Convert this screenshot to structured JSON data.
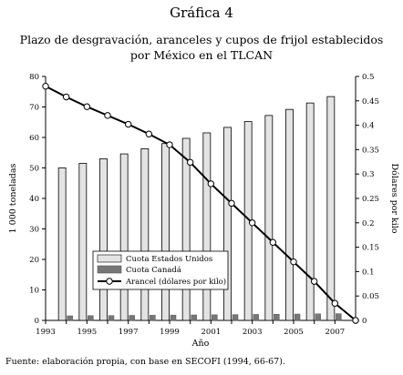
{
  "figure_label": "Gráfica 4",
  "subtitle_line1": "Plazo de desgravación, aranceles y cupos de frijol establecidos",
  "subtitle_line2": "por México en el TLCAN",
  "source": "Fuente: elaboración propia, con base en SECOFI (1994, 66-67).",
  "chart_data": {
    "type": "bar+line",
    "xlabel": "Año",
    "ylabel_left": "1 000 toneladas",
    "ylabel_right": "Dólares por kilo",
    "ylim_left": [
      0,
      80
    ],
    "ylim_right": [
      0,
      0.5
    ],
    "x_range": [
      1993,
      2008
    ],
    "x_ticks": [
      1993,
      1995,
      1997,
      1999,
      2001,
      2003,
      2005,
      2007
    ],
    "y_ticks_left": [
      0,
      10,
      20,
      30,
      40,
      50,
      60,
      70,
      80
    ],
    "y_ticks_right": [
      "0",
      "0.05",
      "0.1",
      "0.15",
      "0.2",
      "0.25",
      "0.3",
      "0.35",
      "0.4",
      "0.45",
      "0.5"
    ],
    "categories": [
      1994,
      1995,
      1996,
      1997,
      1998,
      1999,
      2000,
      2001,
      2002,
      2003,
      2004,
      2005,
      2006,
      2007
    ],
    "series": [
      {
        "name": "Cuota Estados Unidos",
        "kind": "bar",
        "axis": "left",
        "color": "#e3e3e3",
        "values": [
          50,
          51.5,
          53.0,
          54.6,
          56.3,
          58.0,
          59.7,
          61.5,
          63.3,
          65.2,
          67.2,
          69.2,
          71.3,
          73.4
        ]
      },
      {
        "name": "Cuota Canadá",
        "kind": "bar",
        "axis": "left",
        "color": "#777777",
        "values": [
          1.5,
          1.55,
          1.59,
          1.64,
          1.69,
          1.74,
          1.79,
          1.84,
          1.9,
          1.96,
          2.02,
          2.08,
          2.14,
          2.2
        ]
      },
      {
        "name": "Arancel (dólares por kilo)",
        "kind": "line",
        "axis": "right",
        "color": "#000000",
        "x": [
          1993,
          1994,
          1995,
          1996,
          1997,
          1998,
          1999,
          2000,
          2001,
          2002,
          2003,
          2004,
          2005,
          2006,
          2007,
          2008
        ],
        "values": [
          0.48,
          0.458,
          0.438,
          0.42,
          0.402,
          0.382,
          0.36,
          0.324,
          0.28,
          0.24,
          0.2,
          0.16,
          0.12,
          0.08,
          0.035,
          0
        ]
      }
    ],
    "legend_position": "bottom-left"
  }
}
